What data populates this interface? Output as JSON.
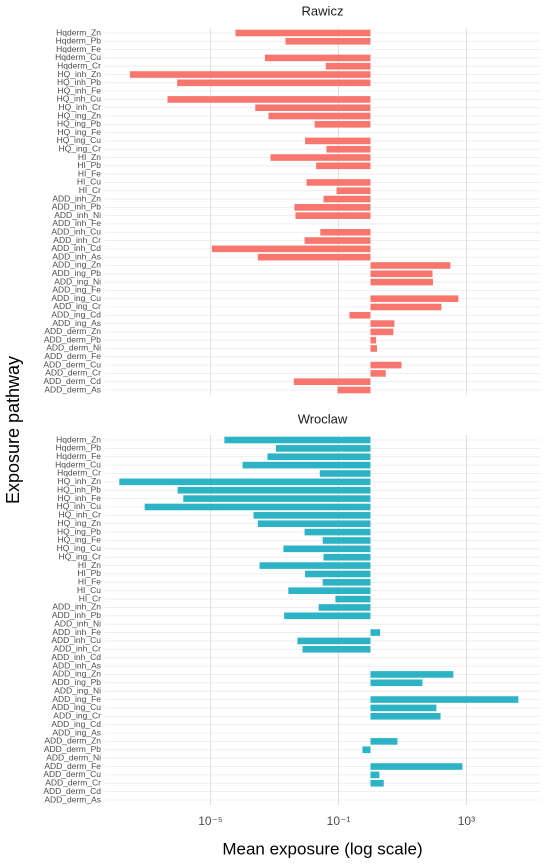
{
  "chart_data": [
    {
      "type": "bar",
      "title": "Rawicz",
      "y_label": "Exposure pathway",
      "categories": [
        "Hqderm_Zn",
        "Hqderm_Pb",
        "Hqderm_Fe",
        "Hqderm_Cu",
        "Hqderm_Cr",
        "HQ_inh_Zn",
        "HQ_inh_Pb",
        "HQ_inh_Fe",
        "HQ_inh_Cu",
        "HQ_inh_Cr",
        "HQ_ing_Zn",
        "HQ_ing_Pb",
        "HQ_ing_Fe",
        "HQ_ing_Cu",
        "HQ_ing_Cr",
        "HI_Zn",
        "HI_Pb",
        "HI_Fe",
        "HI_Cu",
        "HI_Cr",
        "ADD_inh_Zn",
        "ADD_inh_Pb",
        "ADD_inh_Ni",
        "ADD_inh_Fe",
        "ADD_inh_Cu",
        "ADD_inh_Cr",
        "ADD_inh_Cd",
        "ADD_inh_As",
        "ADD_ing_Zn",
        "ADD_ing_Pb",
        "ADD_ing_Ni",
        "ADD_ing_Fe",
        "ADD_ing_Cu",
        "ADD_ing_Cr",
        "ADD_ing_Cd",
        "ADD_ing_As",
        "ADD_derm_Zn",
        "ADD_derm_Pb",
        "ADD_derm_Ni",
        "ADD_derm_Fe",
        "ADD_derm_Cu",
        "ADD_derm_Cr",
        "ADD_derm_Cd",
        "ADD_derm_As"
      ],
      "values": [
        6e-05,
        0.0022,
        null,
        0.0005,
        0.04,
        3e-08,
        9e-07,
        null,
        4.5e-07,
        0.00025,
        0.00065,
        0.018,
        null,
        0.009,
        0.042,
        0.00075,
        0.02,
        null,
        0.01,
        0.087,
        0.034,
        0.0042,
        0.0045,
        null,
        0.027,
        0.0087,
        1.1e-05,
        0.0003,
        316,
        87,
        90,
        null,
        560,
        165,
        0.22,
        5.6,
        5.2,
        1.5,
        1.6,
        null,
        9.3,
        3,
        0.004,
        0.093
      ],
      "color": "#f8766d",
      "log_x": true,
      "grid": true,
      "xlim": [
        5e-09,
        200000
      ],
      "xticks": [
        1e-05,
        0.1,
        1000
      ]
    },
    {
      "type": "bar",
      "title": "Wroclaw",
      "x_label": "Mean exposure (log scale)",
      "categories": [
        "Hqderm_Zn",
        "Hqderm_Pb",
        "Hqderm_Fe",
        "Hqderm_Cu",
        "Hqderm_Cr",
        "HQ_inh_Zn",
        "HQ_inh_Pb",
        "HQ_inh_Fe",
        "HQ_inh_Cu",
        "HQ_inh_Cr",
        "HQ_ing_Zn",
        "HQ_ing_Pb",
        "HQ_ing_Fe",
        "HQ_ing_Cu",
        "HQ_ing_Cr",
        "HI_Zn",
        "HI_Pb",
        "HI_Fe",
        "HI_Cu",
        "HI_Cr",
        "ADD_inh_Zn",
        "ADD_inh_Pb",
        "ADD_inh_Ni",
        "ADD_inh_Fe",
        "ADD_inh_Cu",
        "ADD_inh_Cr",
        "ADD_inh_Cd",
        "ADD_inh_As",
        "ADD_ing_Zn",
        "ADD_ing_Pb",
        "ADD_ing_Ni",
        "ADD_ing_Fe",
        "ADD_ing_Cu",
        "ADD_ing_Cr",
        "ADD_ing_Cd",
        "ADD_ing_As",
        "ADD_derm_Zn",
        "ADD_derm_Pb",
        "ADD_derm_Ni",
        "ADD_derm_Fe",
        "ADD_derm_Cu",
        "ADD_derm_Cr",
        "ADD_derm_Cd",
        "ADD_derm_As"
      ],
      "values": [
        2.7e-05,
        0.0011,
        0.0006,
        0.0001,
        0.026,
        1.4e-08,
        9.3e-07,
        1.4e-06,
        8.7e-08,
        0.00022,
        0.0003,
        0.0087,
        0.032,
        0.0019,
        0.034,
        0.00034,
        0.009,
        0.032,
        0.0027,
        0.08,
        0.024,
        0.002,
        null,
        2,
        0.0052,
        0.0075,
        null,
        null,
        390,
        42,
        null,
        42000,
        115,
        155,
        null,
        null,
        7,
        0.56,
        null,
        750,
        1.9,
        2.6,
        null,
        null
      ],
      "color": "#2cb3c6",
      "log_x": true,
      "grid": true,
      "xlim": [
        5e-09,
        200000
      ],
      "xticks": [
        {
          "value": 1e-05,
          "label": "10⁻⁵"
        },
        {
          "value": 0.1,
          "label": "10⁻¹"
        },
        {
          "value": 1000,
          "label": "10³"
        }
      ]
    }
  ]
}
